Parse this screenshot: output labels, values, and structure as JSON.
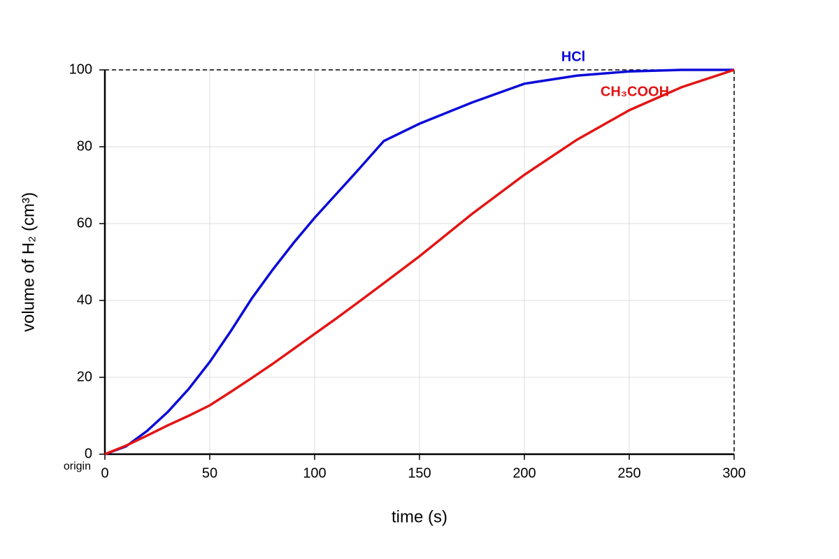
{
  "chart_data": {
    "type": "line",
    "x_label": "time (s)",
    "y_label": "volume of H₂ (cm³)",
    "annotations": [
      "origin"
    ],
    "x": [
      0,
      10,
      20,
      30,
      40,
      50,
      60,
      70,
      80,
      90,
      100,
      110,
      120,
      133,
      150,
      175,
      200,
      225,
      250,
      275,
      300
    ],
    "series": [
      {
        "name": "HCl",
        "color": "#0b0bd9",
        "values": [
          0,
          2,
          6,
          11,
          17,
          24,
          32,
          40.5,
          48,
          55,
          61.5,
          67.5,
          73.5,
          81.5,
          86,
          91.5,
          96.4,
          98.5,
          99.6,
          100,
          100
        ]
      },
      {
        "name": "CH₃COOH",
        "color": "#e31414",
        "values": [
          0,
          2.2,
          4.8,
          7.5,
          10,
          12.7,
          16.2,
          19.8,
          23.5,
          27.4,
          31.3,
          35.2,
          39.2,
          44.5,
          51.5,
          62.5,
          72.7,
          81.8,
          89.5,
          95.5,
          100
        ]
      }
    ],
    "xlim": [
      0,
      300
    ],
    "xticks": [
      0,
      50,
      100,
      150,
      200,
      250,
      300
    ],
    "ylim": [
      0,
      100
    ],
    "yticks": [
      0,
      20,
      40,
      60,
      80,
      100
    ],
    "grid": true
  }
}
